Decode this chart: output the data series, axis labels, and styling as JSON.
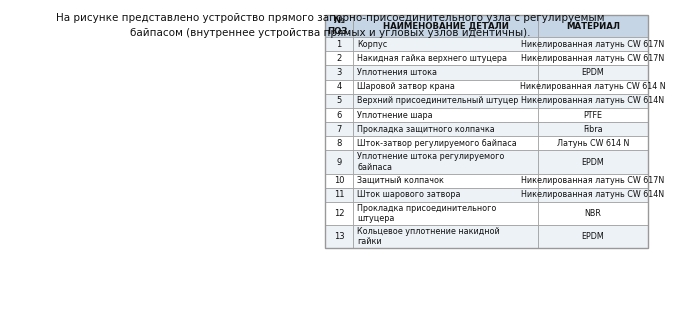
{
  "title_text": "На рисунке представлено устройство прямого запорно-присоединительного узла с регулируемым\nбайпасом (внутреннее устройства прямых и угловых узлов идентичны).",
  "header_col0": "№\nПОЗ.",
  "header_col1": "НАИМЕНОВАНИЕ ДЕТАЛИ",
  "header_col2": "МАТЕРИАЛ",
  "header_bg": "#c5d5e5",
  "row_bg_even": "#edf2f7",
  "row_bg_odd": "#ffffff",
  "table_rows": [
    [
      "1",
      "Корпус",
      "Никелированная латунь CW 617N"
    ],
    [
      "2",
      "Накидная гайка верхнего штуцера",
      "Никелированная латунь CW 617N"
    ],
    [
      "3",
      "Уплотнения штока",
      "EPDM"
    ],
    [
      "4",
      "Шаровой затвор крана",
      "Никелированная латунь CW 614 N"
    ],
    [
      "5",
      "Верхний присоединительный штуцер",
      "Никелированная латунь CW 614N"
    ],
    [
      "6",
      "Уплотнение шара",
      "PTFE"
    ],
    [
      "7",
      "Прокладка защитного колпачка",
      "Fibra"
    ],
    [
      "8",
      "Шток-затвор регулируемого байпаса",
      "Латунь CW 614 N"
    ],
    [
      "9",
      "Уплотнение штока регулируемого\nбайпаса",
      "EPDM"
    ],
    [
      "10",
      "Защитный колпачок",
      "Никелированная латунь CW 617N"
    ],
    [
      "11",
      "Шток шарового затвора",
      "Никелированная латунь CW 614N"
    ],
    [
      "12",
      "Прокладка присоединительного\nштуцера",
      "NBR"
    ],
    [
      "13",
      "Кольцевое уплотнение накидной\nгайки",
      "EPDM"
    ]
  ],
  "border_color": "#999999",
  "text_color": "#111111",
  "bg_color": "#ffffff"
}
